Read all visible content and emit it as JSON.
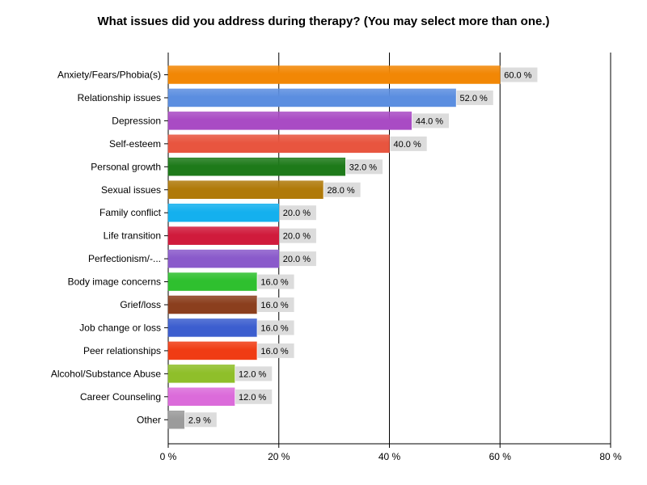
{
  "chart_data": {
    "type": "bar",
    "orientation": "horizontal",
    "title": "What issues did you address during therapy? (You may select more than one.)",
    "categories": [
      "Anxiety/Fears/Phobia(s)",
      "Relationship issues",
      "Depression",
      "Self-esteem",
      "Personal growth",
      "Sexual issues",
      "Family conflict",
      "Life transition",
      "Perfectionism/-...",
      "Body image concerns",
      "Grief/loss",
      "Job change or loss",
      "Peer relationships",
      "Alcohol/Substance Abuse",
      "Career Counseling",
      "Other"
    ],
    "values": [
      60.0,
      52.0,
      44.0,
      40.0,
      32.0,
      28.0,
      20.0,
      20.0,
      20.0,
      16.0,
      16.0,
      16.0,
      16.0,
      12.0,
      12.0,
      2.9
    ],
    "value_labels": [
      "60.0 %",
      "52.0 %",
      "44.0 %",
      "40.0 %",
      "32.0 %",
      "28.0 %",
      "20.0 %",
      "20.0 %",
      "20.0 %",
      "16.0 %",
      "16.0 %",
      "16.0 %",
      "16.0 %",
      "12.0 %",
      "12.0 %",
      "2.9 %"
    ],
    "colors": [
      "#F28705",
      "#5B8EE0",
      "#A94BC4",
      "#E8553F",
      "#1E7A1A",
      "#B07A0A",
      "#14B0EE",
      "#D01B3C",
      "#8A5ACB",
      "#2FC02F",
      "#8B3F1E",
      "#3C5ECF",
      "#F03C14",
      "#8FBF2A",
      "#DB6BDA",
      "#9B9B9B"
    ],
    "xlim": [
      0,
      80
    ],
    "x_ticks": [
      0,
      20,
      40,
      60,
      80
    ],
    "x_tick_labels": [
      "0 %",
      "20 %",
      "40 %",
      "60 %",
      "80 %"
    ],
    "grid": true
  }
}
